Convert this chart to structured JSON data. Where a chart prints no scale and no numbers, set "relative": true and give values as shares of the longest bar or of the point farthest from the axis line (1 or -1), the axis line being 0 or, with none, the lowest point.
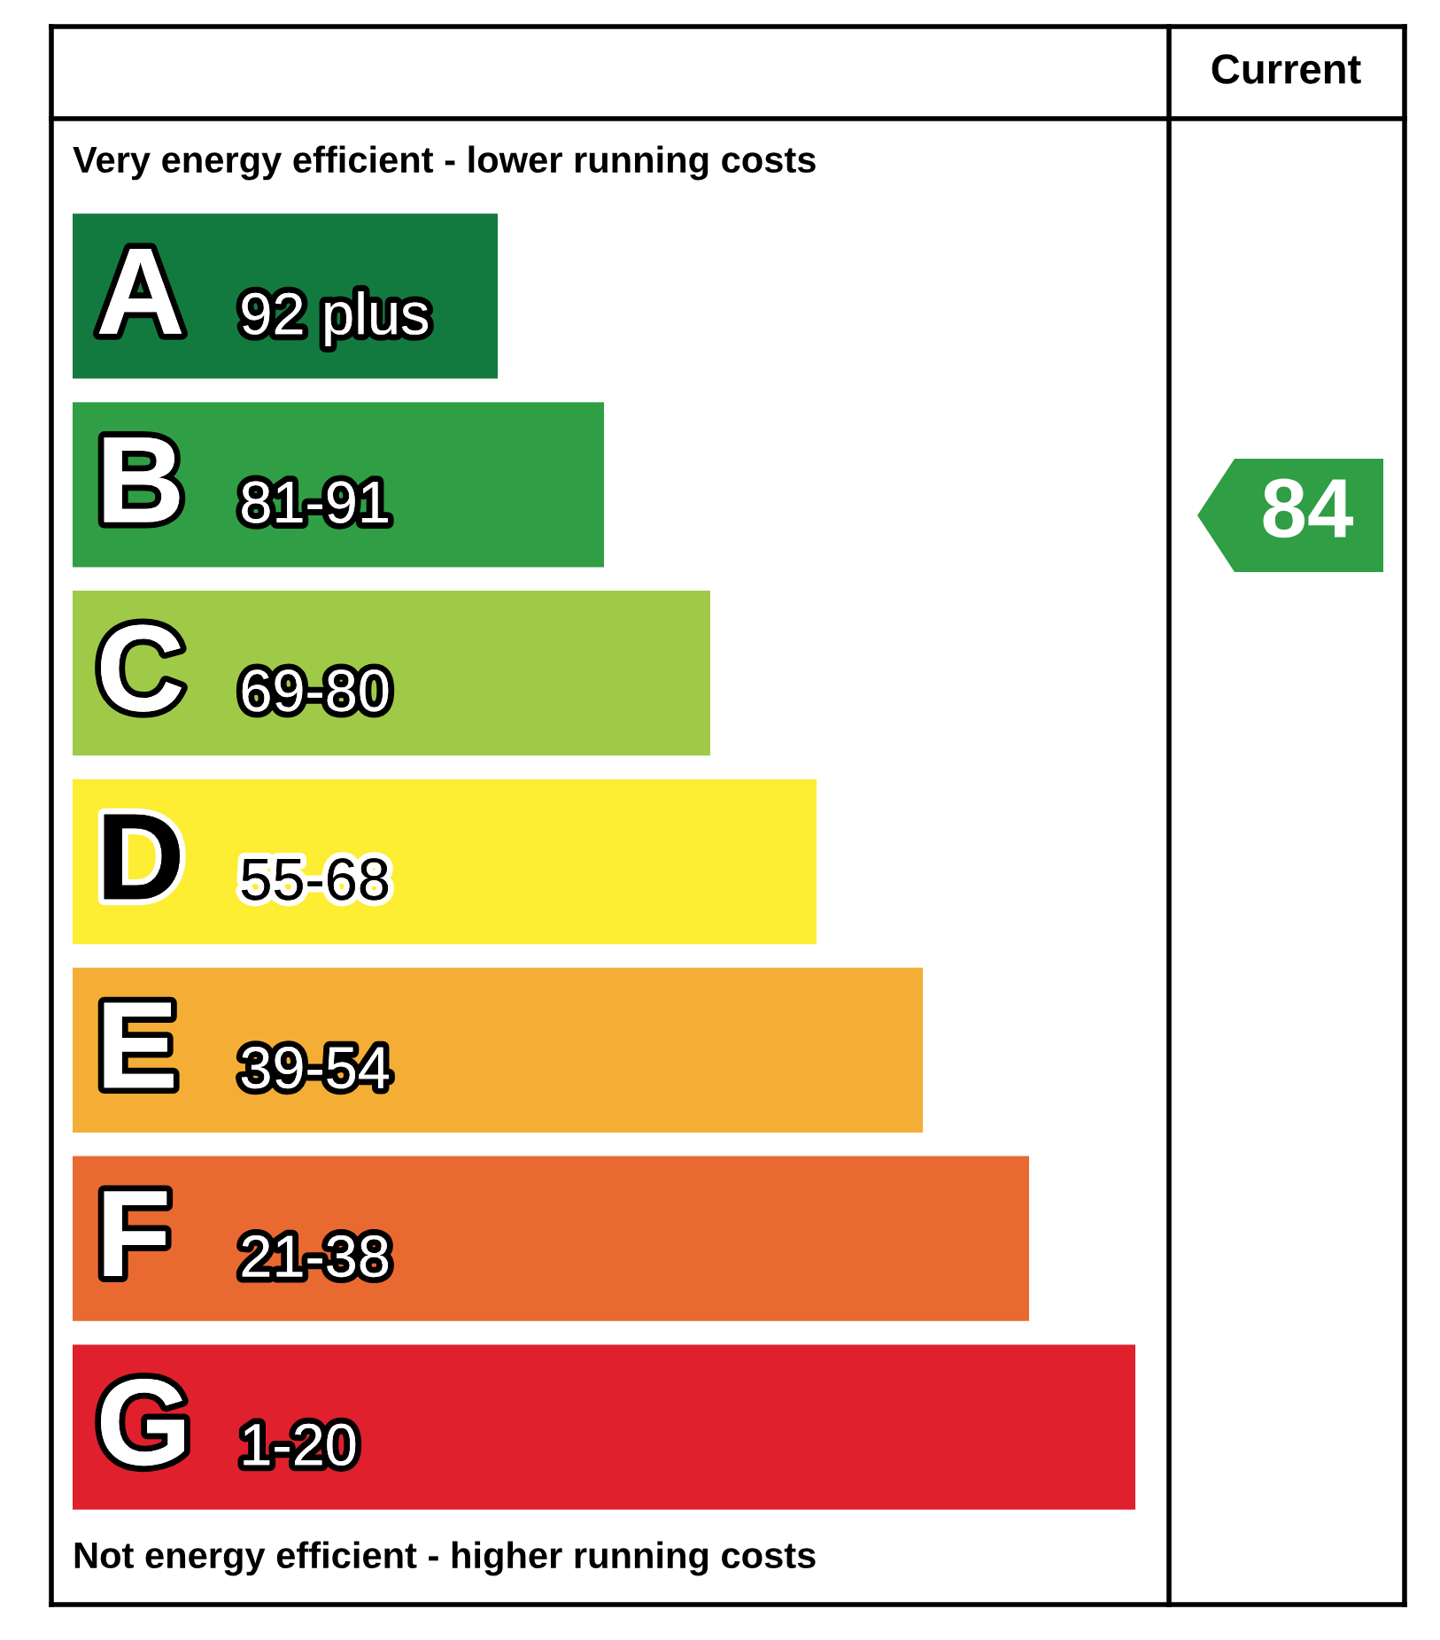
{
  "chart_data": {
    "type": "bar",
    "orientation": "horizontal",
    "relative": true,
    "categories": [
      "A",
      "B",
      "C",
      "D",
      "E",
      "F",
      "G"
    ],
    "values": [
      0.4,
      0.5,
      0.6,
      0.7,
      0.8,
      0.9,
      1.0
    ],
    "colors": [
      "#137a3f",
      "#2f9e44",
      "#9fca48",
      "#fded33",
      "#f4ae36",
      "#e96a30",
      "#e0202d"
    ],
    "title": "Current",
    "annotations": [
      "Very energy efficient - lower running costs",
      "Not energy efficient - higher running costs",
      {
        "text": "92 plus",
        "y": "A"
      },
      {
        "text": "81-91",
        "y": "B"
      },
      {
        "text": "69-80",
        "y": "C"
      },
      {
        "text": "55-68",
        "y": "D"
      },
      {
        "text": "39-54",
        "y": "E"
      },
      {
        "text": "21-38",
        "y": "F"
      },
      {
        "text": "1-20",
        "y": "G"
      },
      "84"
    ]
  }
}
